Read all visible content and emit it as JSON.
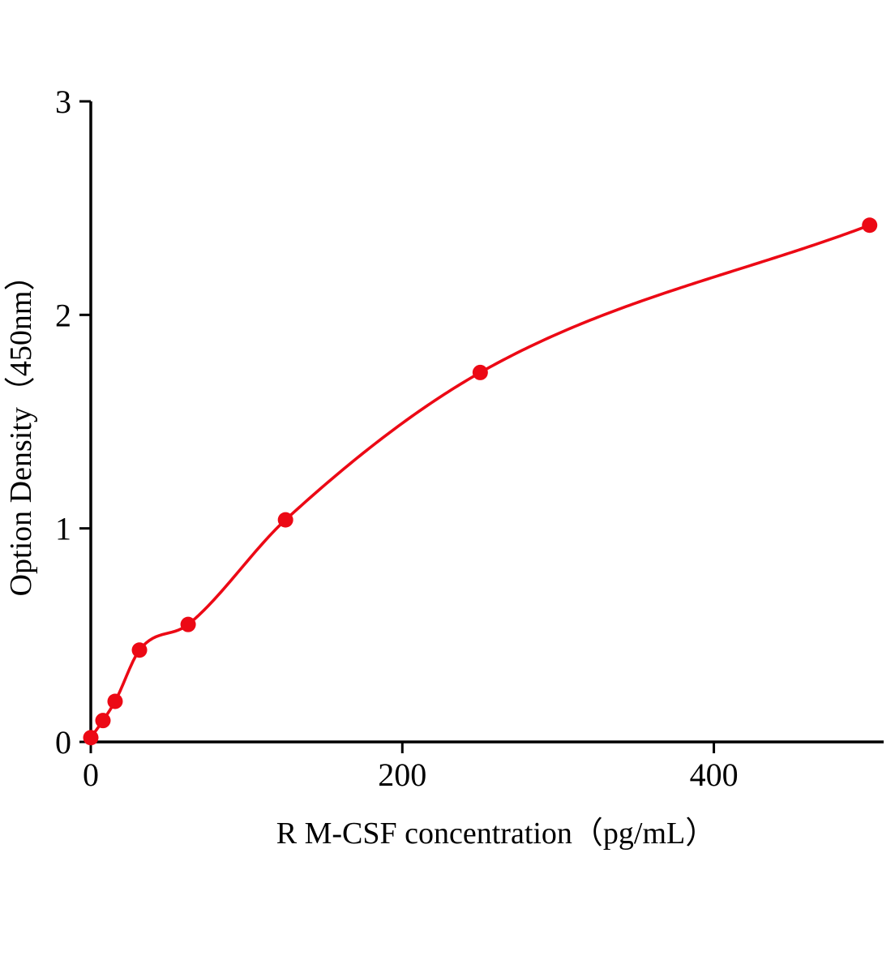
{
  "chart_data": {
    "type": "scatter",
    "title": "",
    "xlabel": "R M-CSF  concentration（pg/mL）",
    "ylabel": "Option Density（450nm）",
    "x": [
      0,
      7.8,
      15.6,
      31.25,
      62.5,
      125,
      250,
      500
    ],
    "y": [
      0.02,
      0.1,
      0.19,
      0.43,
      0.55,
      1.04,
      1.73,
      2.42
    ],
    "fit_curve": "smooth saturating curve through points",
    "xlim": [
      0,
      509
    ],
    "ylim": [
      0,
      3
    ],
    "xticks": [
      0,
      200,
      400
    ],
    "yticks": [
      0,
      1,
      2,
      3
    ],
    "grid": false,
    "legend": "none",
    "point_color": "#ec0915",
    "curve_color": "#ec0915",
    "axis_color": "#000000"
  }
}
